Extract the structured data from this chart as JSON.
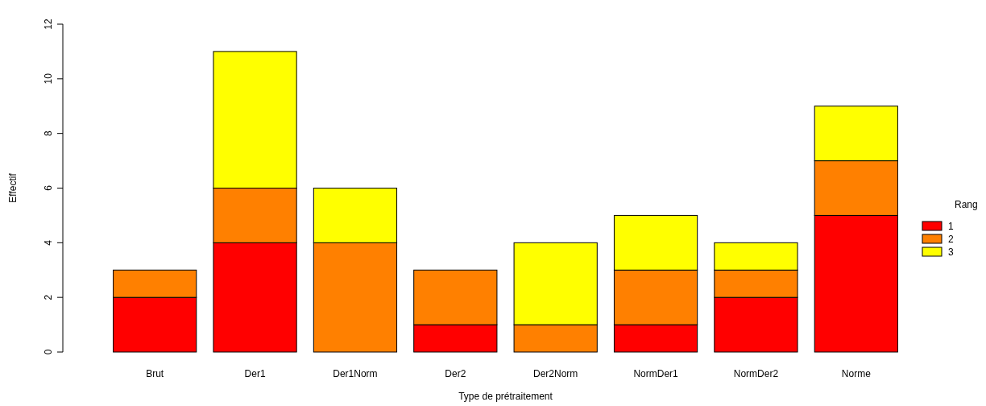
{
  "chart_data": {
    "type": "bar",
    "stacked": true,
    "xlabel": "Type de prétraitement",
    "ylabel": "Effectif",
    "legend_title": "Rang",
    "legend": "right",
    "categories": [
      "Brut",
      "Der1",
      "Der1Norm",
      "Der2",
      "Der2Norm",
      "NormDer1",
      "NormDer2",
      "Norme"
    ],
    "series": [
      {
        "name": "1",
        "color": "#ff0000",
        "values": [
          2,
          4,
          0,
          1,
          0,
          1,
          2,
          5
        ]
      },
      {
        "name": "2",
        "color": "#ff8000",
        "values": [
          1,
          2,
          4,
          2,
          1,
          2,
          1,
          2
        ]
      },
      {
        "name": "3",
        "color": "#ffff00",
        "values": [
          0,
          5,
          2,
          0,
          3,
          2,
          1,
          2
        ]
      }
    ],
    "ylim": [
      0,
      12
    ],
    "yticks": [
      0,
      2,
      4,
      6,
      8,
      10,
      12
    ],
    "grid": false
  }
}
